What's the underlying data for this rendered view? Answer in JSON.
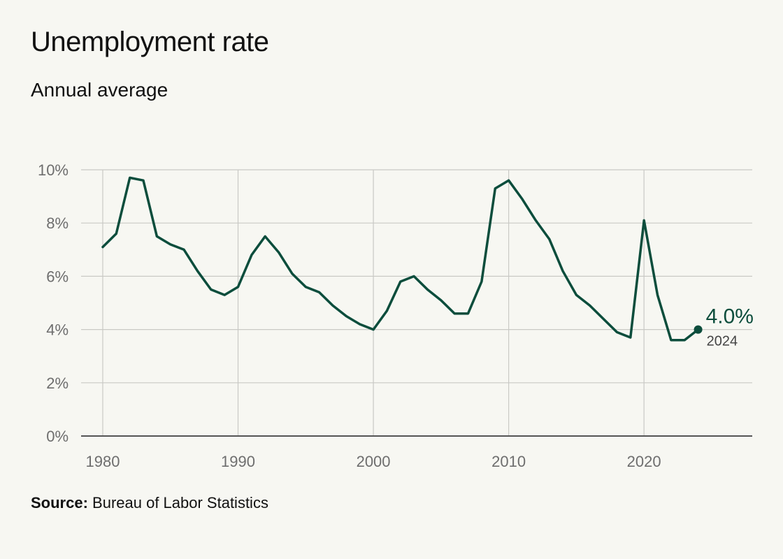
{
  "chart_data": {
    "type": "line",
    "title": "Unemployment rate",
    "subtitle": "Annual average",
    "xlabel": "",
    "ylabel": "",
    "xlim": [
      1978.4,
      2028
    ],
    "ylim": [
      0,
      10
    ],
    "yticks": [
      0,
      2,
      4,
      6,
      8,
      10
    ],
    "ytick_labels": [
      "0%",
      "2%",
      "4%",
      "6%",
      "8%",
      "10%"
    ],
    "xticks": [
      1980,
      1990,
      2000,
      2010,
      2020
    ],
    "xtick_labels": [
      "1980",
      "1990",
      "2000",
      "2010",
      "2020"
    ],
    "grid": true,
    "series": [
      {
        "color": "#0c4d3c",
        "x": [
          1980,
          1981,
          1982,
          1983,
          1984,
          1985,
          1986,
          1987,
          1988,
          1989,
          1990,
          1991,
          1992,
          1993,
          1994,
          1995,
          1996,
          1997,
          1998,
          1999,
          2000,
          2001,
          2002,
          2003,
          2004,
          2005,
          2006,
          2007,
          2008,
          2009,
          2010,
          2011,
          2012,
          2013,
          2014,
          2015,
          2016,
          2017,
          2018,
          2019,
          2020,
          2021,
          2022,
          2023,
          2024
        ],
        "values": [
          7.1,
          7.6,
          9.7,
          9.6,
          7.5,
          7.2,
          7.0,
          6.2,
          5.5,
          5.3,
          5.6,
          6.8,
          7.5,
          6.9,
          6.1,
          5.6,
          5.4,
          4.9,
          4.5,
          4.2,
          4.0,
          4.7,
          5.8,
          6.0,
          5.5,
          5.1,
          4.6,
          4.6,
          5.8,
          9.3,
          9.6,
          8.9,
          8.1,
          7.4,
          6.2,
          5.3,
          4.9,
          4.4,
          3.9,
          3.7,
          8.1,
          5.3,
          3.6,
          3.6,
          4.0
        ]
      }
    ],
    "annotation": {
      "value_label": "4.0%",
      "year_label": "2024",
      "x": 2024,
      "y": 4.0
    }
  },
  "source": {
    "label": "Source:",
    "text": " Bureau of Labor Statistics"
  }
}
